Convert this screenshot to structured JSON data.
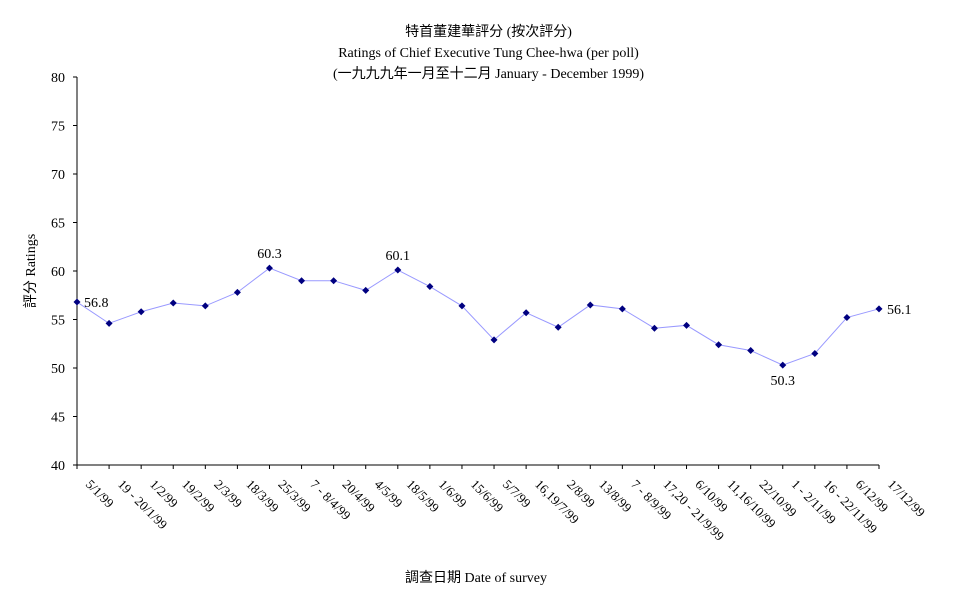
{
  "title": "特首董建華評分 (按次評分)",
  "subtitle": "Ratings of Chief Executive Tung Chee-hwa (per poll)",
  "subtitle2": "(一九九九年一月至十二月 January - December 1999)",
  "chart_data": {
    "type": "line",
    "xlabel": "調查日期 Date of survey",
    "ylabel": "評分 Ratings",
    "ylim": [
      40,
      80
    ],
    "yticks": [
      40,
      45,
      50,
      55,
      60,
      65,
      70,
      75,
      80
    ],
    "grid": false,
    "legend": "none",
    "categories": [
      "5/1/99",
      "19 - 20/1/99",
      "1/2/99",
      "19/2/99",
      "2/3/99",
      "18/3/99",
      "25/3/99",
      "7 - 8/4/99",
      "20/4/99",
      "4/5/99",
      "18/5/99",
      "1/6/99",
      "15/6/99",
      "5/7/99",
      "16,19/7/99",
      "2/8/99",
      "13/8/99",
      "7 - 8/9/99",
      "17,20 - 21/9/99",
      "6/10/99",
      "11,16/10/99",
      "22/10/99",
      "1 - 2/11/99",
      "16 - 22/11/99",
      "6/12/99",
      "17/12/99"
    ],
    "series": [
      {
        "values": [
          56.8,
          54.6,
          55.8,
          56.7,
          56.4,
          57.8,
          60.3,
          59.0,
          59.0,
          58.0,
          60.1,
          58.4,
          56.4,
          52.9,
          55.7,
          54.2,
          56.5,
          56.1,
          54.1,
          54.4,
          52.4,
          51.8,
          50.3,
          51.5,
          55.2,
          56.1
        ],
        "color": "#000080",
        "line_color": "#9999ff"
      }
    ],
    "data_labels": [
      {
        "index": 0,
        "text": "56.8"
      },
      {
        "index": 6,
        "text": "60.3"
      },
      {
        "index": 10,
        "text": "60.1"
      },
      {
        "index": 22,
        "text": "50.3"
      },
      {
        "index": 25,
        "text": "56.1"
      }
    ]
  }
}
